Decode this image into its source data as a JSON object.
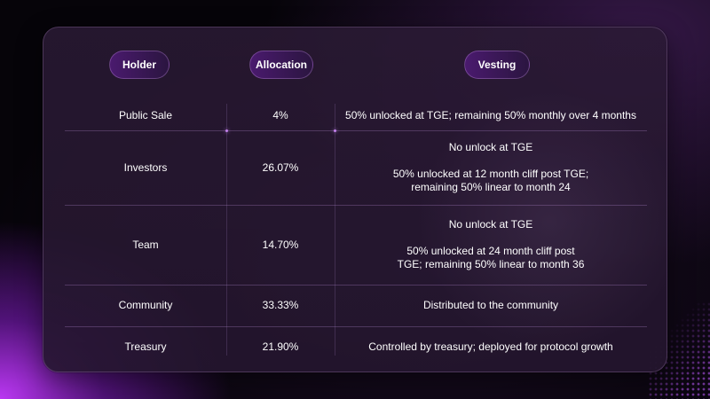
{
  "table": {
    "headers": {
      "holder": "Holder",
      "allocation": "Allocation",
      "vesting": "Vesting"
    },
    "rows": [
      {
        "holder": "Public Sale",
        "allocation": "4%",
        "vesting": [
          "50% unlocked at TGE; remaining 50% monthly over 4 months"
        ]
      },
      {
        "holder": "Investors",
        "allocation": "26.07%",
        "vesting": [
          "No unlock at TGE",
          "50% unlocked at 12 month cliff post TGE;",
          "remaining 50% linear to month 24"
        ]
      },
      {
        "holder": "Team",
        "allocation": "14.70%",
        "vesting": [
          "No unlock at TGE",
          "50% unlocked at 24 month cliff post",
          "TGE; remaining 50% linear to month 36"
        ]
      },
      {
        "holder": "Community",
        "allocation": "33.33%",
        "vesting": [
          "Distributed to the community"
        ]
      },
      {
        "holder": "Treasury",
        "allocation": "21.90%",
        "vesting": [
          "Controlled by treasury; deployed for protocol growth"
        ]
      }
    ]
  },
  "colors": {
    "accent": "#c43aff",
    "pill": "#4a1a6e",
    "card": "#2a1a34"
  }
}
